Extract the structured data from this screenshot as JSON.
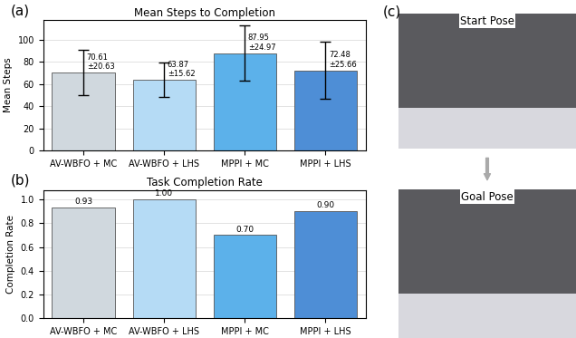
{
  "chart_data": [
    {
      "type": "bar",
      "title": "Mean Steps to Completion",
      "annotations": [
        "(a)"
      ],
      "y_label": "Mean Steps",
      "categories": [
        "AV-WBFO + MC",
        "AV-WBFO + LHS",
        "MPPI + MC",
        "MPPI + LHS"
      ],
      "values": [
        70.61,
        63.87,
        87.95,
        72.48
      ],
      "errors": [
        20.63,
        15.62,
        24.97,
        25.66
      ],
      "value_labels": [
        "70.61\n±20.63",
        "63.87\n±15.62",
        "87.95\n±24.97",
        "72.48\n±25.66"
      ],
      "colors": [
        "#d0d8de",
        "#b5dbf5",
        "#5cb1ea",
        "#4e8ed6"
      ],
      "ylim": [
        0,
        118
      ],
      "yticks": [
        0,
        20,
        40,
        60,
        80,
        100
      ],
      "grid": true,
      "data_labels": true
    },
    {
      "type": "bar",
      "title": "Task Completion Rate",
      "annotations": [
        "(b)"
      ],
      "y_label": "Completion Rate",
      "categories": [
        "AV-WBFO + MC",
        "AV-WBFO + LHS",
        "MPPI + MC",
        "MPPI + LHS"
      ],
      "values": [
        0.93,
        1.0,
        0.7,
        0.9
      ],
      "value_labels": [
        "0.93",
        "1.00",
        "0.70",
        "0.90"
      ],
      "colors": [
        "#d0d8de",
        "#b5dbf5",
        "#5cb1ea",
        "#4e8ed6"
      ],
      "ylim": [
        0,
        1.08
      ],
      "yticks": [
        {
          "value": 0,
          "label": "0.0"
        },
        {
          "value": 0.2,
          "label": "0.2"
        },
        {
          "value": 0.4,
          "label": "0.4"
        },
        {
          "value": 0.6,
          "label": "0.6"
        },
        {
          "value": 0.8,
          "label": "0.8"
        },
        {
          "value": 1.0,
          "label": "1.0"
        }
      ],
      "grid": true,
      "data_labels": true
    }
  ],
  "panel_c": {
    "label": "(c)",
    "images": [
      "Start Pose",
      "Goal Pose"
    ]
  }
}
